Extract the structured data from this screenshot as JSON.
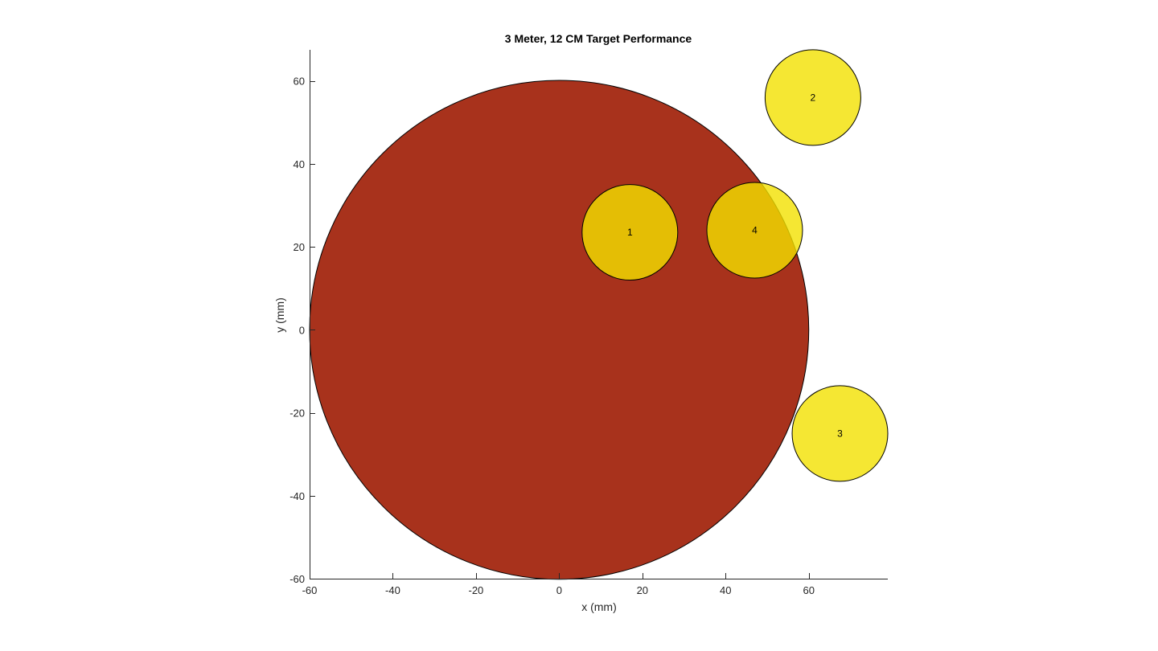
{
  "chart_data": {
    "type": "scatter",
    "title": "3 Meter, 12 CM Target Performance",
    "xlabel": "x (mm)",
    "ylabel": "y (mm)",
    "xlim": [
      -60,
      79
    ],
    "ylim": [
      -60,
      67.5
    ],
    "xticks": [
      -60,
      -40,
      -20,
      0,
      20,
      40,
      60
    ],
    "yticks": [
      -60,
      -40,
      -20,
      0,
      20,
      40,
      60
    ],
    "grid": false,
    "target": {
      "center_x": 0,
      "center_y": 0,
      "radius": 60,
      "color": "#a8321c"
    },
    "shots": {
      "radius": 11.5,
      "color": "#f2e100",
      "opacity": 0.8,
      "points": [
        {
          "label": "1",
          "x": 17,
          "y": 23.5
        },
        {
          "label": "2",
          "x": 61,
          "y": 56
        },
        {
          "label": "3",
          "x": 67.5,
          "y": -25
        },
        {
          "label": "4",
          "x": 47,
          "y": 24
        }
      ]
    }
  }
}
